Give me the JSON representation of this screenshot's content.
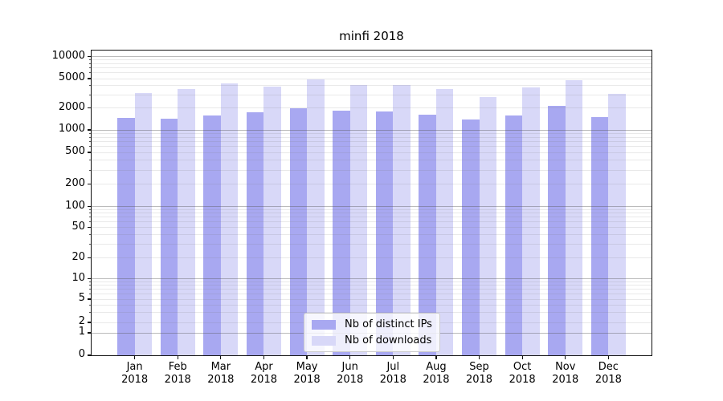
{
  "chart_data": {
    "type": "bar",
    "title": "minfi 2018",
    "x": {
      "months": [
        "Jan",
        "Feb",
        "Mar",
        "Apr",
        "May",
        "Jun",
        "Jul",
        "Aug",
        "Sep",
        "Oct",
        "Nov",
        "Dec"
      ],
      "year": "2018"
    },
    "series": [
      {
        "name": "Nb of distinct IPs",
        "color": "#a8a8f1",
        "values": [
          1450,
          1410,
          1580,
          1740,
          2000,
          1810,
          1800,
          1600,
          1390,
          1570,
          2140,
          1500
        ]
      },
      {
        "name": "Nb of downloads",
        "color": "#d8d8f8",
        "values": [
          3200,
          3600,
          4290,
          3910,
          4900,
          4100,
          4050,
          3630,
          2800,
          3780,
          4750,
          3100
        ]
      }
    ],
    "y_axis": {
      "scale": "symlog",
      "ticks": [
        0,
        1,
        2,
        5,
        10,
        20,
        50,
        100,
        200,
        500,
        1000,
        2000,
        5000,
        10000
      ],
      "ylim": [
        0,
        12000
      ]
    },
    "legend_position": "lower center",
    "grid": true
  }
}
